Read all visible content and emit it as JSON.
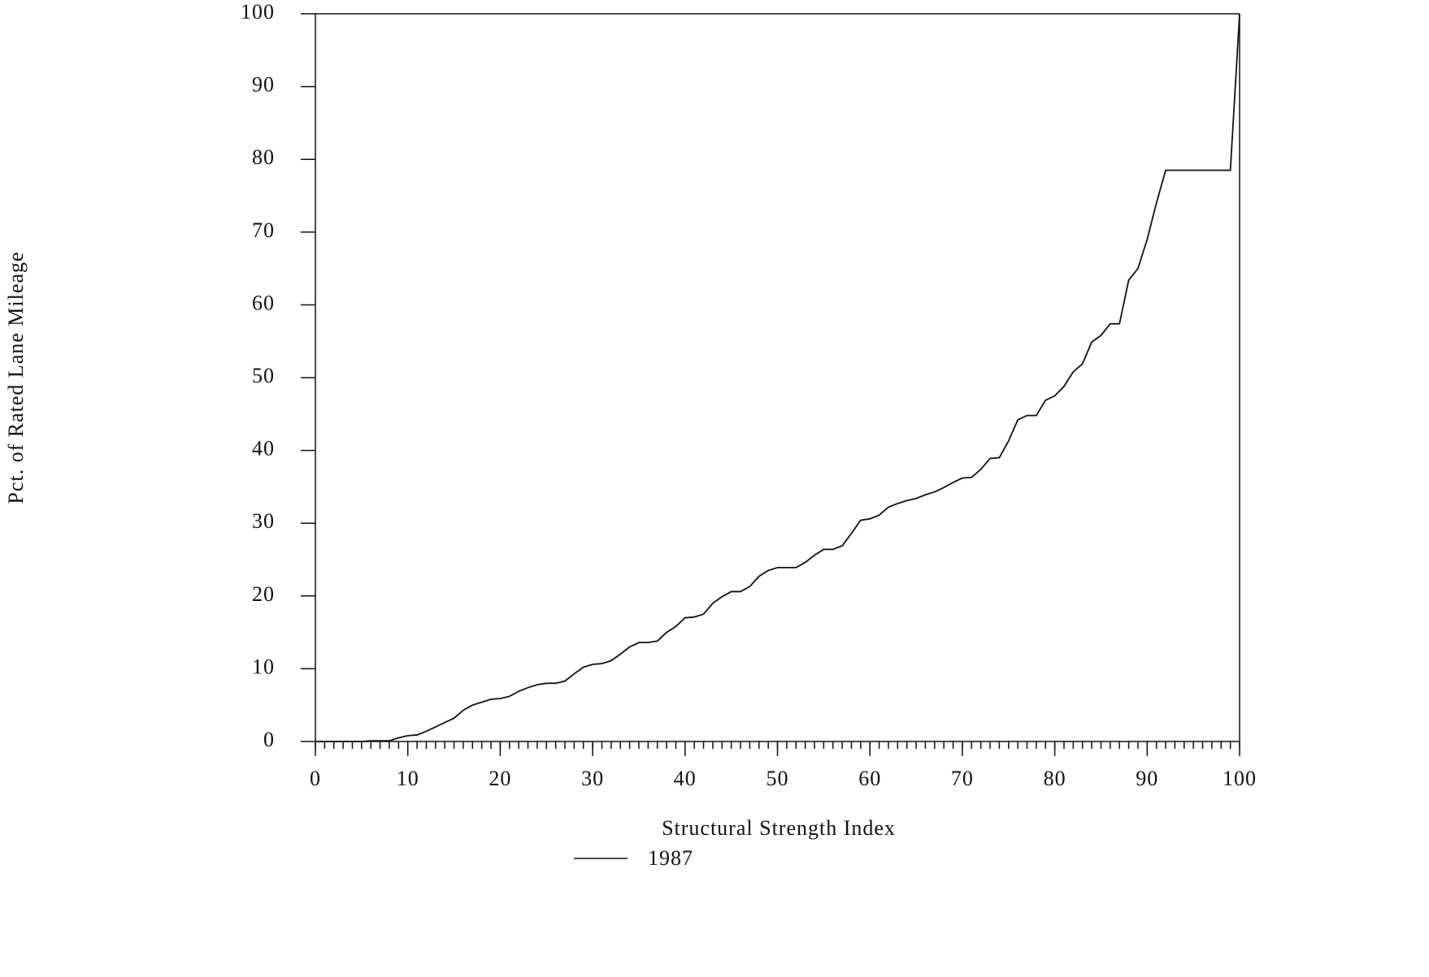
{
  "chart_data": {
    "type": "line",
    "x_label": "Structural Strength Index",
    "y_label": "Pct. of Rated Lane Mileage",
    "x": [
      0,
      1,
      2,
      3,
      4,
      5,
      6,
      7,
      8,
      9,
      10,
      11,
      12,
      13,
      14,
      15,
      16,
      17,
      18,
      19,
      20,
      21,
      22,
      23,
      24,
      25,
      26,
      27,
      28,
      29,
      30,
      31,
      32,
      33,
      34,
      35,
      36,
      37,
      38,
      39,
      40,
      41,
      42,
      43,
      44,
      45,
      46,
      47,
      48,
      49,
      50,
      51,
      52,
      53,
      54,
      55,
      56,
      57,
      58,
      59,
      60,
      61,
      62,
      63,
      64,
      65,
      66,
      67,
      68,
      69,
      70,
      71,
      72,
      73,
      74,
      75,
      76,
      77,
      78,
      79,
      80,
      81,
      82,
      83,
      84,
      85,
      86,
      87,
      88,
      89,
      90,
      91,
      92,
      93,
      94,
      95,
      96,
      97,
      98,
      99,
      100
    ],
    "series": [
      {
        "name": "1987",
        "color": "#111111",
        "values": [
          0,
          0,
          0,
          0,
          0,
          0,
          0.1,
          0.1,
          0.1,
          0.5,
          0.8,
          0.9,
          1.4,
          2.0,
          2.6,
          3.2,
          4.3,
          5.0,
          5.4,
          5.8,
          5.9,
          6.2,
          6.9,
          7.4,
          7.8,
          8.0,
          8.0,
          8.3,
          9.3,
          10.2,
          10.6,
          10.7,
          11.1,
          12.0,
          13.0,
          13.6,
          13.6,
          13.8,
          15.0,
          15.8,
          17.0,
          17.1,
          17.5,
          19.0,
          19.9,
          20.6,
          20.6,
          21.3,
          22.7,
          23.5,
          23.9,
          23.9,
          23.9,
          24.6,
          25.6,
          26.4,
          26.4,
          26.9,
          28.6,
          30.4,
          30.6,
          31.1,
          32.2,
          32.7,
          33.1,
          33.4,
          33.9,
          34.3,
          34.9,
          35.6,
          36.2,
          36.3,
          37.4,
          38.9,
          39.0,
          41.3,
          44.2,
          44.8,
          44.8,
          46.9,
          47.5,
          48.8,
          50.8,
          51.9,
          54.9,
          55.8,
          57.4,
          57.4,
          63.4,
          65.0,
          69.0,
          74.0,
          78.5,
          78.5,
          78.5,
          78.5,
          78.5,
          78.5,
          78.5,
          78.5,
          100
        ]
      }
    ],
    "xlim": [
      0,
      100
    ],
    "xticks": [
      0,
      10,
      20,
      30,
      40,
      50,
      60,
      70,
      80,
      90,
      100
    ],
    "ylim": [
      0,
      100
    ],
    "yticks": [
      0,
      10,
      20,
      30,
      40,
      50,
      60,
      70,
      80,
      90,
      100
    ],
    "grid": false,
    "legend": "bottom"
  }
}
